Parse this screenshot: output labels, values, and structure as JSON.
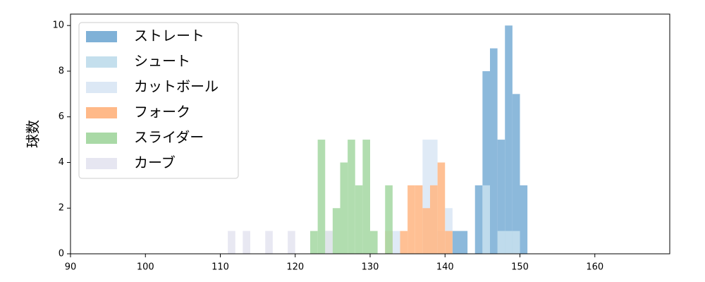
{
  "chart_data": {
    "type": "histogram",
    "y_label": "球数",
    "xlim": [
      90,
      170
    ],
    "ylim": [
      0,
      10.5
    ],
    "xticks": [
      90,
      100,
      110,
      120,
      130,
      140,
      150,
      160
    ],
    "yticks": [
      0,
      2,
      4,
      6,
      8,
      10
    ],
    "legend": "upper left",
    "series": [
      {
        "name": "ストレート",
        "color": "#7fb1d7",
        "bins": [
          141,
          142,
          143,
          144,
          145,
          146,
          147,
          148,
          149,
          150,
          151
        ],
        "values": [
          1,
          1,
          0,
          3,
          8,
          9,
          5,
          10,
          7,
          3
        ]
      },
      {
        "name": "シュート",
        "color": "#c4dfed",
        "bins": [
          145,
          146,
          147,
          148,
          149,
          150
        ],
        "values": [
          3,
          0,
          1,
          1,
          1
        ]
      },
      {
        "name": "カットボール",
        "color": "#dce8f5",
        "bins": [
          133,
          134,
          135,
          136,
          137,
          138,
          139,
          140,
          141
        ],
        "values": [
          1,
          0,
          0,
          0,
          5,
          5,
          1,
          2
        ]
      },
      {
        "name": "フォーク",
        "color": "#ffb988",
        "bins": [
          132,
          133,
          134,
          135,
          136,
          137,
          138,
          139,
          140,
          141
        ],
        "values": [
          1,
          0,
          1,
          3,
          3,
          2,
          3,
          4,
          1
        ]
      },
      {
        "name": "スライダー",
        "color": "#a9d9a6",
        "bins": [
          122,
          123,
          124,
          125,
          126,
          127,
          128,
          129,
          130,
          131,
          132,
          133
        ],
        "values": [
          1,
          5,
          1,
          2,
          4,
          5,
          3,
          5,
          1,
          0,
          3
        ]
      },
      {
        "name": "カーブ",
        "color": "#e6e6f1",
        "bins": [
          111,
          112,
          113,
          114,
          115,
          116,
          117,
          118,
          119,
          120,
          121,
          122,
          123,
          124,
          125
        ],
        "values": [
          1,
          0,
          1,
          0,
          0,
          1,
          0,
          0,
          1,
          0,
          0,
          0,
          0,
          1
        ]
      }
    ]
  }
}
